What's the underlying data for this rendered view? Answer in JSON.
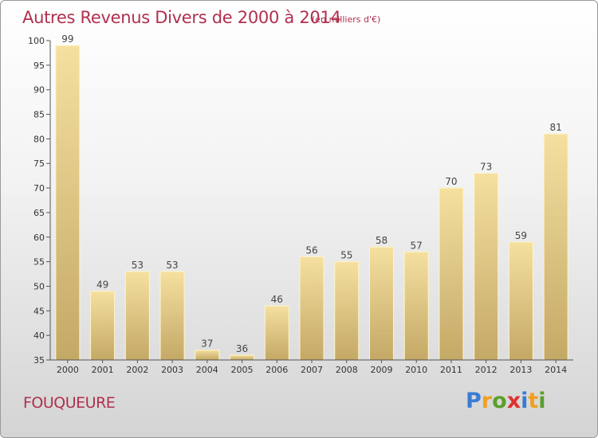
{
  "header": {
    "title": "Autres Revenus Divers de 2000 à 2014",
    "subtitle": "(en milliers d'€)"
  },
  "footer": {
    "commune": "FOUQUEURE",
    "logo": {
      "letters": [
        "P",
        "r",
        "o",
        "x",
        "i",
        "t",
        "i"
      ],
      "colors": [
        "#3a7bd5",
        "#f0a020",
        "#5aa02c",
        "#e03030",
        "#3a7bd5",
        "#f0a020",
        "#5aa02c"
      ]
    }
  },
  "chart_data": {
    "type": "bar",
    "title": "Autres Revenus Divers de 2000 à 2014",
    "subtitle": "(en milliers d'€)",
    "xlabel": "",
    "ylabel": "",
    "categories": [
      "2000",
      "2001",
      "2002",
      "2003",
      "2004",
      "2005",
      "2006",
      "2007",
      "2008",
      "2009",
      "2010",
      "2011",
      "2012",
      "2013",
      "2014"
    ],
    "values": [
      99,
      49,
      53,
      53,
      37,
      36,
      46,
      56,
      55,
      58,
      57,
      70,
      73,
      59,
      81
    ],
    "ylim": [
      35,
      100
    ],
    "yticks": [
      35,
      40,
      45,
      50,
      55,
      60,
      65,
      70,
      75,
      80,
      85,
      90,
      95,
      100
    ],
    "grid": false,
    "legend": "none",
    "colors": {
      "bar_top": "#f5e0a0",
      "bar_bottom": "#c4a866",
      "bar_edge": "#fff4c8",
      "axis": "#555555"
    }
  }
}
